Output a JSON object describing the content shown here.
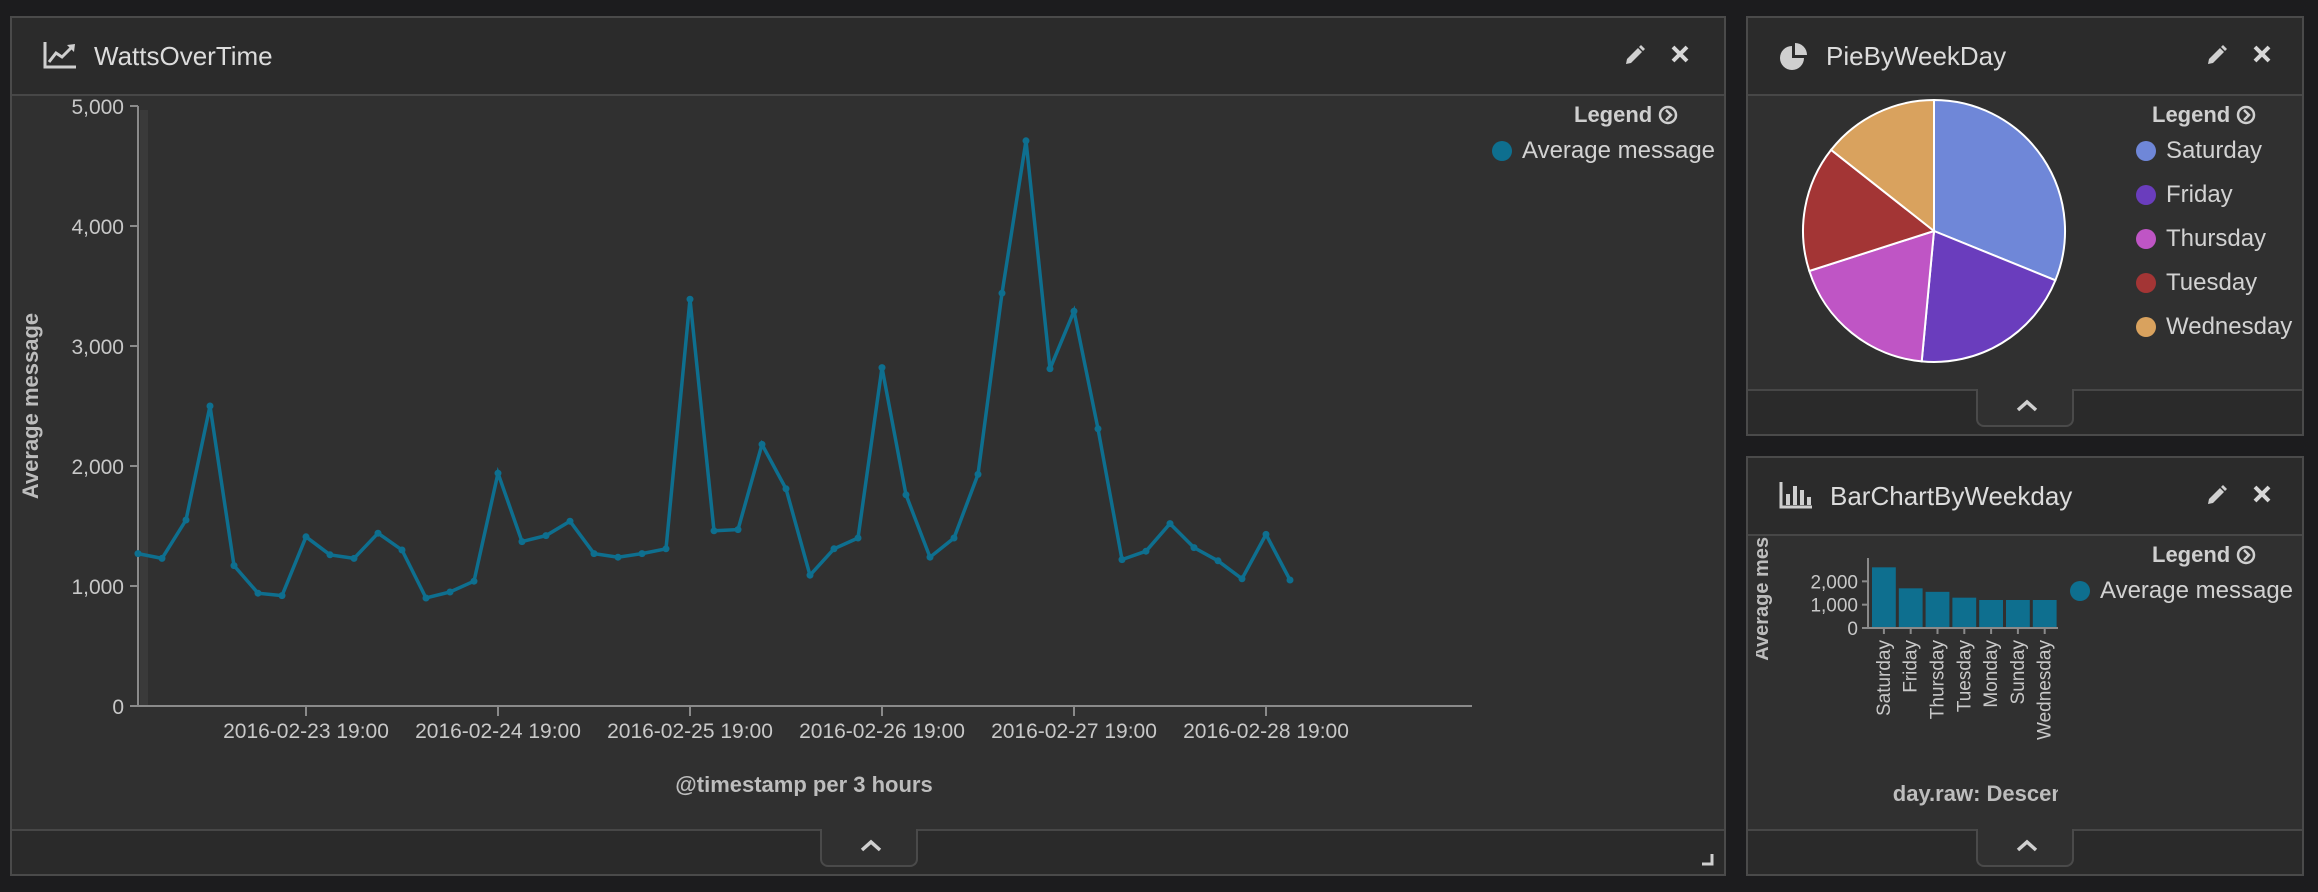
{
  "colors": {
    "series": "#0e6f8f",
    "pie": [
      "#6f87d8",
      "#6a3dbd",
      "#bf55c5",
      "#a33535",
      "#d9a25e"
    ]
  },
  "icons": {
    "line_chart": "line-chart-icon",
    "pie_chart": "pie-chart-icon",
    "bar_chart": "bar-chart-icon",
    "edit": "pencil-icon",
    "close": "close-icon",
    "legend_toggle": "circle-arrow-right-icon",
    "collapse": "chevron-up-icon",
    "resize": "resize-handle-icon"
  },
  "panels": {
    "watts": {
      "title": "WattsOverTime",
      "legend": {
        "title": "Legend",
        "items": [
          {
            "label": "Average message",
            "color": "#0e6f8f"
          }
        ]
      }
    },
    "pie": {
      "title": "PieByWeekDay",
      "legend": {
        "title": "Legend",
        "items": [
          {
            "label": "Saturday",
            "color": "#6f87d8"
          },
          {
            "label": "Friday",
            "color": "#6a3dbd"
          },
          {
            "label": "Thursday",
            "color": "#bf55c5"
          },
          {
            "label": "Tuesday",
            "color": "#a33535"
          },
          {
            "label": "Wednesday",
            "color": "#d9a25e"
          }
        ]
      }
    },
    "bar": {
      "title": "BarChartByWeekday",
      "legend": {
        "title": "Legend",
        "items": [
          {
            "label": "Average message",
            "color": "#0e6f8f"
          }
        ]
      }
    }
  },
  "chart_data": [
    {
      "type": "line",
      "ylabel": "Average message",
      "xlabel": "@timestamp per 3 hours",
      "ylim": [
        0,
        5000
      ],
      "yticks": [
        0,
        1000,
        2000,
        3000,
        4000,
        5000
      ],
      "yticklabels": [
        "0",
        "1,000",
        "2,000",
        "3,000",
        "4,000",
        "5,000"
      ],
      "xticklabels": [
        "2016-02-23 19:00",
        "2016-02-24 19:00",
        "2016-02-25 19:00",
        "2016-02-26 19:00",
        "2016-02-27 19:00",
        "2016-02-28 19:00"
      ],
      "grid": false,
      "legend": "top-right",
      "series": [
        {
          "name": "Average message",
          "values": [
            1270,
            1230,
            1550,
            2500,
            1170,
            940,
            920,
            1410,
            1260,
            1230,
            1440,
            1300,
            900,
            950,
            1040,
            1940,
            1370,
            1420,
            1540,
            1270,
            1240,
            1270,
            1310,
            3390,
            1460,
            1470,
            2180,
            1810,
            1090,
            1310,
            1400,
            2820,
            1760,
            1240,
            1400,
            1930,
            3440,
            4710,
            2810,
            3290,
            2310,
            1220,
            1290,
            1520,
            1320,
            1210,
            1060,
            1430,
            1050
          ]
        }
      ]
    },
    {
      "type": "pie",
      "legend": "right",
      "categories": [
        "Saturday",
        "Friday",
        "Thursday",
        "Tuesday",
        "Wednesday"
      ],
      "values": [
        2600,
        1700,
        1550,
        1300,
        1200
      ]
    },
    {
      "type": "bar",
      "ylabel": "Average message",
      "xlabel": "day.raw: Descending",
      "yticklabels": [
        "0",
        "1,000",
        "2,000"
      ],
      "categories": [
        "Saturday",
        "Friday",
        "Thursday",
        "Tuesday",
        "Monday",
        "Sunday",
        "Wednesday"
      ],
      "values": [
        2600,
        1700,
        1550,
        1300,
        1200,
        1200,
        1200
      ],
      "ylim": [
        0,
        3000
      ],
      "legend": "right"
    }
  ]
}
